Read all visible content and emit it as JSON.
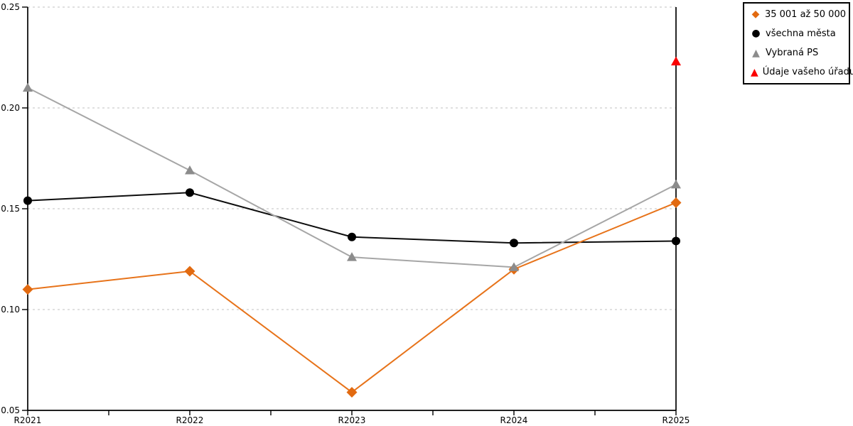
{
  "chart_data": {
    "type": "line",
    "title": "",
    "xlabel": "",
    "ylabel": "",
    "categories": [
      "R2021",
      "R2022",
      "R2023",
      "R2024",
      "R2025"
    ],
    "ylim": [
      0.05,
      0.25
    ],
    "y_ticks": [
      0.25,
      0.2,
      0.15,
      0.1,
      0.05
    ],
    "y_tick_labels": [
      "0.25",
      "0.20",
      "0.15",
      "0.10",
      "0.05"
    ],
    "grid": "horizontal-dotted",
    "grid_color": "#c2c2c2",
    "axis_color": "#000000",
    "legend_position": "top-right",
    "series": [
      {
        "name": "35 001 až 50 000",
        "marker": "diamond",
        "color": "#e7731a",
        "marker_color": "#e26a10",
        "values": [
          0.11,
          0.119,
          0.059,
          0.12,
          0.153
        ],
        "line": true
      },
      {
        "name": "všechna města",
        "marker": "circle",
        "color": "#0d0d0d",
        "marker_color": "#000000",
        "values": [
          0.154,
          0.158,
          0.136,
          0.133,
          0.134
        ],
        "line": true
      },
      {
        "name": "Vybraná PS",
        "marker": "triangle",
        "color": "#a6a6a6",
        "marker_color": "#8c8c8c",
        "values": [
          0.21,
          0.169,
          0.126,
          0.121,
          0.162
        ],
        "line": true
      },
      {
        "name": "Údaje vašeho úřadu",
        "marker": "triangle",
        "color": "#ff0000",
        "marker_color": "#fb0000",
        "values": [
          null,
          null,
          null,
          null,
          0.223
        ],
        "line": false
      }
    ]
  }
}
